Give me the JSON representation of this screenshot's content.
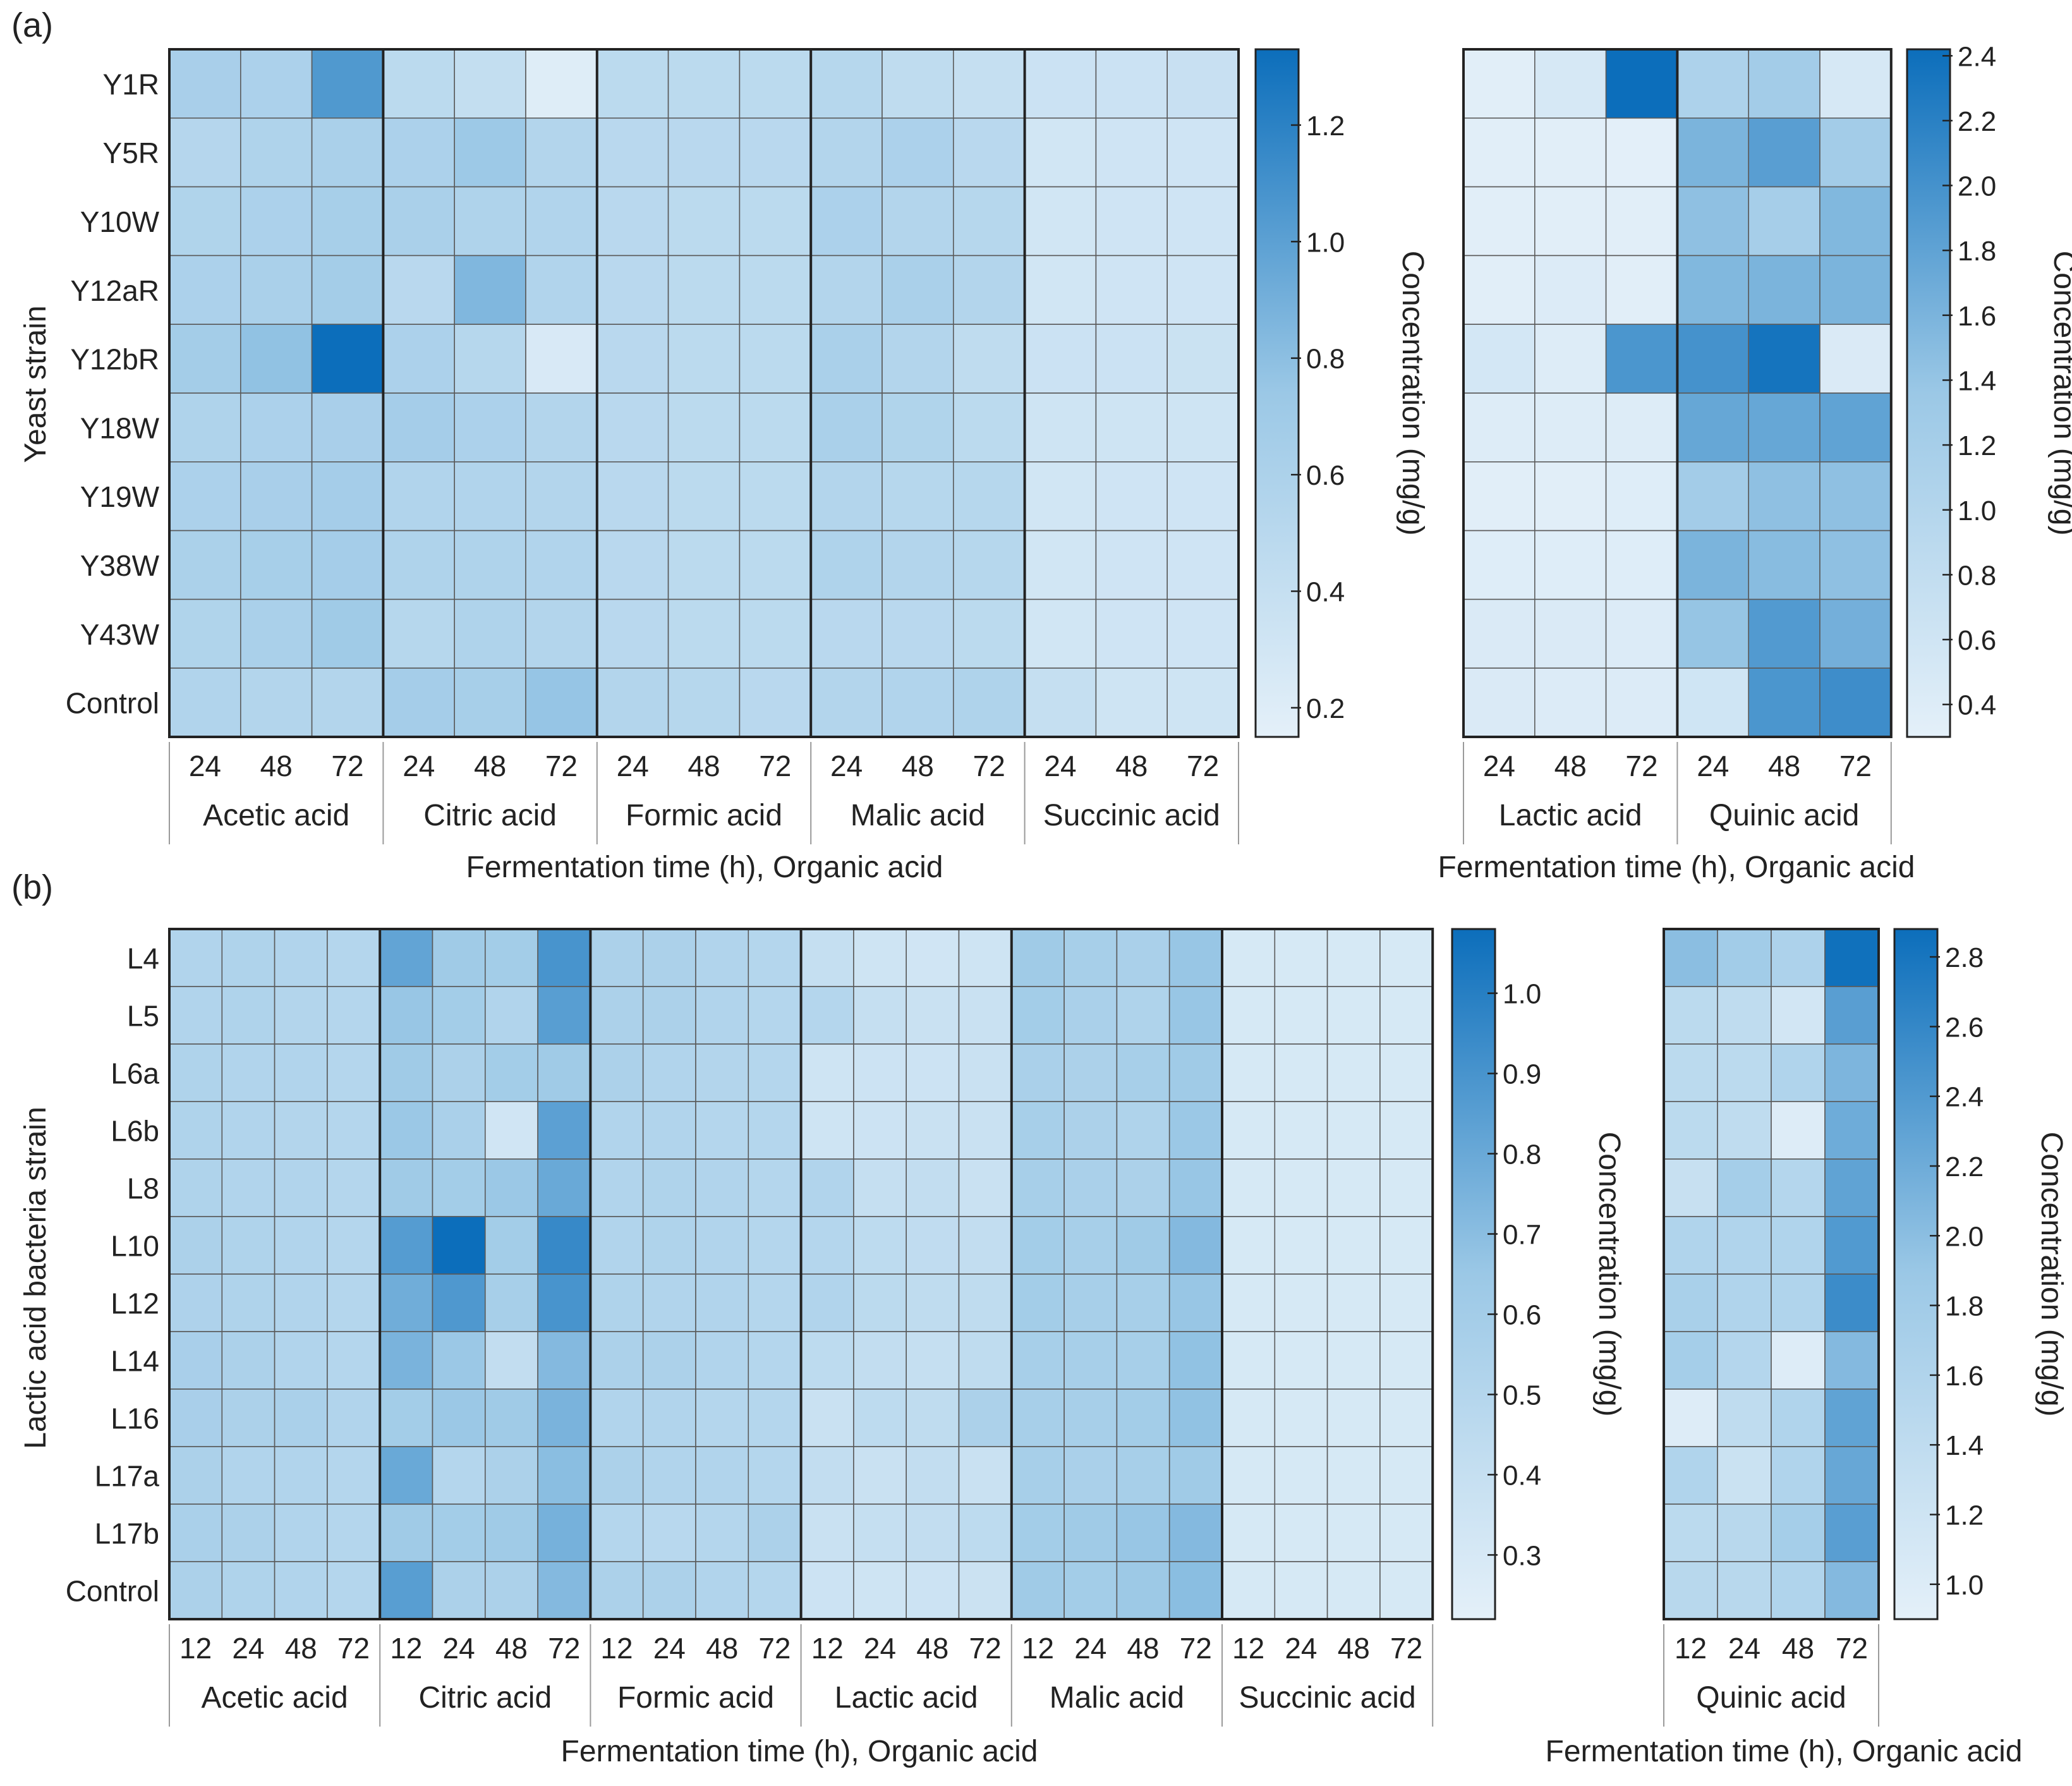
{
  "colors": {
    "low": "#e4f0f9",
    "mid": "#9bc8e6",
    "high": "#0c6ebb",
    "grid": "#5a5a5a",
    "frame": "#222222",
    "text": "#222222"
  },
  "panels": [
    {
      "label": "(a)"
    },
    {
      "label": "(b)"
    }
  ],
  "chart_data": [
    {
      "id": "a-main",
      "type": "heatmap",
      "panel": "(a)",
      "ylabel": "Yeast strain",
      "xlabel": "Fermentation time (h), Organic acid",
      "rows": [
        "Y1R",
        "Y5R",
        "Y10W",
        "Y12aR",
        "Y12bR",
        "Y18W",
        "Y19W",
        "Y38W",
        "Y43W",
        "Control"
      ],
      "times": [
        "24",
        "48",
        "72"
      ],
      "groups": [
        "Acetic acid",
        "Citric acid",
        "Formic acid",
        "Malic acid",
        "Succinic acid"
      ],
      "colorbar": {
        "label": "Concentration (mg/g)",
        "range": [
          0.15,
          1.33
        ],
        "ticks": [
          "0.2",
          "0.4",
          "0.6",
          "0.8",
          "1.0",
          "1.2"
        ]
      },
      "values": [
        [
          0.63,
          0.6,
          1.05,
          0.48,
          0.42,
          0.2,
          0.48,
          0.48,
          0.48,
          0.52,
          0.45,
          0.4,
          0.35,
          0.35,
          0.38
        ],
        [
          0.53,
          0.58,
          0.62,
          0.6,
          0.72,
          0.55,
          0.5,
          0.5,
          0.5,
          0.55,
          0.6,
          0.5,
          0.3,
          0.32,
          0.32
        ],
        [
          0.57,
          0.6,
          0.64,
          0.62,
          0.58,
          0.56,
          0.5,
          0.48,
          0.48,
          0.6,
          0.55,
          0.52,
          0.3,
          0.32,
          0.32
        ],
        [
          0.6,
          0.62,
          0.67,
          0.5,
          0.85,
          0.56,
          0.5,
          0.48,
          0.48,
          0.55,
          0.62,
          0.55,
          0.3,
          0.32,
          0.32
        ],
        [
          0.67,
          0.78,
          1.33,
          0.6,
          0.52,
          0.25,
          0.5,
          0.48,
          0.48,
          0.62,
          0.55,
          0.45,
          0.35,
          0.35,
          0.36
        ],
        [
          0.58,
          0.6,
          0.63,
          0.66,
          0.6,
          0.55,
          0.5,
          0.48,
          0.48,
          0.62,
          0.57,
          0.48,
          0.33,
          0.33,
          0.33
        ],
        [
          0.6,
          0.63,
          0.66,
          0.56,
          0.56,
          0.55,
          0.5,
          0.48,
          0.48,
          0.55,
          0.52,
          0.52,
          0.3,
          0.32,
          0.32
        ],
        [
          0.61,
          0.64,
          0.66,
          0.58,
          0.58,
          0.56,
          0.5,
          0.48,
          0.48,
          0.58,
          0.55,
          0.52,
          0.3,
          0.32,
          0.32
        ],
        [
          0.57,
          0.62,
          0.7,
          0.52,
          0.58,
          0.55,
          0.5,
          0.48,
          0.48,
          0.5,
          0.5,
          0.48,
          0.3,
          0.32,
          0.32
        ],
        [
          0.56,
          0.55,
          0.55,
          0.66,
          0.64,
          0.76,
          0.55,
          0.52,
          0.5,
          0.55,
          0.56,
          0.58,
          0.4,
          0.33,
          0.33
        ]
      ]
    },
    {
      "id": "a-side",
      "type": "heatmap",
      "panel": "(a)",
      "xlabel": "Fermentation time (h), Organic acid",
      "rows": [
        "Y1R",
        "Y5R",
        "Y10W",
        "Y12aR",
        "Y12bR",
        "Y18W",
        "Y19W",
        "Y38W",
        "Y43W",
        "Control"
      ],
      "times": [
        "24",
        "48",
        "72"
      ],
      "groups": [
        "Lactic acid",
        "Quinic acid"
      ],
      "colorbar": {
        "label": "Concentration (mg/g)",
        "range": [
          0.3,
          2.42
        ],
        "ticks": [
          "0.4",
          "0.6",
          "0.8",
          "1.0",
          "1.2",
          "1.4",
          "1.6",
          "1.8",
          "2.0",
          "2.2",
          "2.4"
        ]
      },
      "values": [
        [
          0.35,
          0.5,
          2.42,
          1.1,
          1.25,
          0.5
        ],
        [
          0.35,
          0.35,
          0.32,
          1.6,
          1.85,
          1.25
        ],
        [
          0.35,
          0.35,
          0.35,
          1.45,
          1.2,
          1.55
        ],
        [
          0.35,
          0.42,
          0.35,
          1.55,
          1.6,
          1.6
        ],
        [
          0.55,
          0.4,
          1.95,
          2.0,
          2.35,
          0.45
        ],
        [
          0.4,
          0.4,
          0.4,
          1.75,
          1.75,
          1.8
        ],
        [
          0.35,
          0.35,
          0.38,
          1.25,
          1.45,
          1.45
        ],
        [
          0.38,
          0.38,
          0.38,
          1.6,
          1.5,
          1.45
        ],
        [
          0.45,
          0.45,
          0.42,
          1.4,
          1.9,
          1.65
        ],
        [
          0.45,
          0.42,
          0.42,
          0.6,
          1.95,
          2.05
        ]
      ]
    },
    {
      "id": "b-main",
      "type": "heatmap",
      "panel": "(b)",
      "ylabel": "Lactic acid bacteria strain",
      "xlabel": "Fermentation time (h), Organic acid",
      "rows": [
        "L4",
        "L5",
        "L6a",
        "L6b",
        "L8",
        "L10",
        "L12",
        "L14",
        "L16",
        "L17a",
        "L17b",
        "Control"
      ],
      "times": [
        "12",
        "24",
        "48",
        "72"
      ],
      "groups": [
        "Acetic acid",
        "Citric acid",
        "Formic acid",
        "Lactic acid",
        "Malic acid",
        "Succinic acid"
      ],
      "colorbar": {
        "label": "Concentration (mg/g)",
        "range": [
          0.22,
          1.08
        ],
        "ticks": [
          "0.3",
          "0.4",
          "0.5",
          "0.6",
          "0.7",
          "0.8",
          "0.9",
          "1.0"
        ]
      },
      "values": [
        [
          0.52,
          0.53,
          0.52,
          0.5,
          0.82,
          0.62,
          0.6,
          0.9,
          0.55,
          0.55,
          0.52,
          0.5,
          0.4,
          0.35,
          0.34,
          0.35,
          0.62,
          0.58,
          0.56,
          0.66,
          0.3,
          0.3,
          0.3,
          0.3
        ],
        [
          0.52,
          0.53,
          0.51,
          0.5,
          0.66,
          0.6,
          0.52,
          0.85,
          0.55,
          0.55,
          0.52,
          0.5,
          0.5,
          0.4,
          0.38,
          0.38,
          0.6,
          0.56,
          0.53,
          0.66,
          0.3,
          0.3,
          0.3,
          0.3
        ],
        [
          0.53,
          0.52,
          0.52,
          0.5,
          0.62,
          0.55,
          0.6,
          0.62,
          0.55,
          0.52,
          0.51,
          0.5,
          0.35,
          0.36,
          0.36,
          0.38,
          0.56,
          0.55,
          0.58,
          0.62,
          0.3,
          0.3,
          0.3,
          0.3
        ],
        [
          0.53,
          0.52,
          0.51,
          0.5,
          0.65,
          0.56,
          0.34,
          0.84,
          0.52,
          0.52,
          0.5,
          0.5,
          0.35,
          0.36,
          0.38,
          0.38,
          0.58,
          0.55,
          0.53,
          0.65,
          0.3,
          0.3,
          0.3,
          0.3
        ],
        [
          0.53,
          0.52,
          0.52,
          0.5,
          0.62,
          0.6,
          0.65,
          0.8,
          0.52,
          0.53,
          0.52,
          0.5,
          0.52,
          0.4,
          0.42,
          0.38,
          0.58,
          0.56,
          0.55,
          0.66,
          0.3,
          0.3,
          0.3,
          0.3
        ],
        [
          0.55,
          0.53,
          0.52,
          0.5,
          0.86,
          1.08,
          0.6,
          0.95,
          0.52,
          0.53,
          0.52,
          0.5,
          0.5,
          0.45,
          0.43,
          0.42,
          0.6,
          0.58,
          0.62,
          0.72,
          0.3,
          0.3,
          0.3,
          0.3
        ],
        [
          0.54,
          0.53,
          0.52,
          0.5,
          0.78,
          0.88,
          0.58,
          0.9,
          0.53,
          0.52,
          0.52,
          0.5,
          0.52,
          0.46,
          0.44,
          0.44,
          0.6,
          0.58,
          0.58,
          0.66,
          0.3,
          0.3,
          0.3,
          0.3
        ],
        [
          0.57,
          0.55,
          0.52,
          0.5,
          0.75,
          0.65,
          0.42,
          0.72,
          0.55,
          0.55,
          0.52,
          0.5,
          0.45,
          0.42,
          0.4,
          0.44,
          0.58,
          0.58,
          0.58,
          0.68,
          0.3,
          0.3,
          0.3,
          0.3
        ],
        [
          0.57,
          0.55,
          0.56,
          0.52,
          0.6,
          0.65,
          0.62,
          0.75,
          0.52,
          0.52,
          0.5,
          0.5,
          0.38,
          0.45,
          0.44,
          0.55,
          0.58,
          0.58,
          0.6,
          0.68,
          0.3,
          0.3,
          0.3,
          0.3
        ],
        [
          0.55,
          0.52,
          0.52,
          0.5,
          0.8,
          0.5,
          0.55,
          0.7,
          0.55,
          0.52,
          0.52,
          0.5,
          0.42,
          0.38,
          0.42,
          0.38,
          0.58,
          0.56,
          0.58,
          0.62,
          0.3,
          0.3,
          0.3,
          0.3
        ],
        [
          0.56,
          0.55,
          0.52,
          0.5,
          0.62,
          0.6,
          0.62,
          0.76,
          0.5,
          0.48,
          0.5,
          0.55,
          0.38,
          0.4,
          0.42,
          0.45,
          0.6,
          0.62,
          0.66,
          0.72,
          0.3,
          0.3,
          0.3,
          0.3
        ],
        [
          0.55,
          0.53,
          0.52,
          0.5,
          0.85,
          0.55,
          0.55,
          0.72,
          0.55,
          0.55,
          0.52,
          0.5,
          0.36,
          0.35,
          0.36,
          0.37,
          0.62,
          0.6,
          0.64,
          0.7,
          0.3,
          0.3,
          0.3,
          0.3
        ]
      ]
    },
    {
      "id": "b-side",
      "type": "heatmap",
      "panel": "(b)",
      "xlabel": "Fermentation time (h), Organic acid",
      "rows": [
        "L4",
        "L5",
        "L6a",
        "L6b",
        "L8",
        "L10",
        "L12",
        "L14",
        "L16",
        "L17a",
        "L17b",
        "Control"
      ],
      "times": [
        "12",
        "24",
        "48",
        "72"
      ],
      "groups": [
        "Quinic acid"
      ],
      "colorbar": {
        "label": "Concentration (mg/g)",
        "range": [
          0.9,
          2.88
        ],
        "ticks": [
          "1.0",
          "1.2",
          "1.4",
          "1.6",
          "1.8",
          "2.0",
          "2.2",
          "2.4",
          "2.6",
          "2.8"
        ]
      },
      "values": [
        [
          2.0,
          1.8,
          1.65,
          2.85
        ],
        [
          1.45,
          1.4,
          1.15,
          2.35
        ],
        [
          1.45,
          1.45,
          1.6,
          2.1
        ],
        [
          1.45,
          1.4,
          1.0,
          2.2
        ],
        [
          1.3,
          1.75,
          1.55,
          2.3
        ],
        [
          1.6,
          1.6,
          1.6,
          2.4
        ],
        [
          1.7,
          1.6,
          1.6,
          2.55
        ],
        [
          1.75,
          1.55,
          1.0,
          2.05
        ],
        [
          1.0,
          1.4,
          1.6,
          2.3
        ],
        [
          1.6,
          1.25,
          1.6,
          2.25
        ],
        [
          1.45,
          1.5,
          1.75,
          2.35
        ],
        [
          1.5,
          1.5,
          1.6,
          2.05
        ]
      ]
    }
  ]
}
